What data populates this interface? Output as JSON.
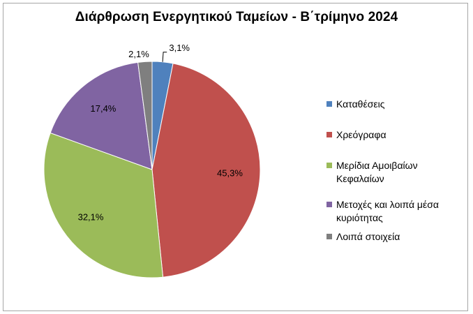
{
  "chart_data": {
    "type": "pie",
    "title": "Διάρθρωση Ενεργητικού Ταμείων - Β΄τρίμηνο 2024",
    "categories": [
      "Καταθέσεις",
      "Χρεόγραφα",
      "Μερίδια Αμοιβαίων Κεφαλαίων",
      "Μετοχές και λοιπά μέσα κυριότητας",
      "Λοιπά στοιχεία"
    ],
    "values": [
      3.1,
      45.3,
      32.1,
      17.4,
      2.1
    ],
    "data_labels": [
      "3,1%",
      "45,3%",
      "32,1%",
      "17,4%",
      "2,1%"
    ],
    "colors": [
      "#4f81bd",
      "#c0504d",
      "#9bbb59",
      "#8064a2",
      "#7f7f7f"
    ],
    "legend_position": "right"
  }
}
